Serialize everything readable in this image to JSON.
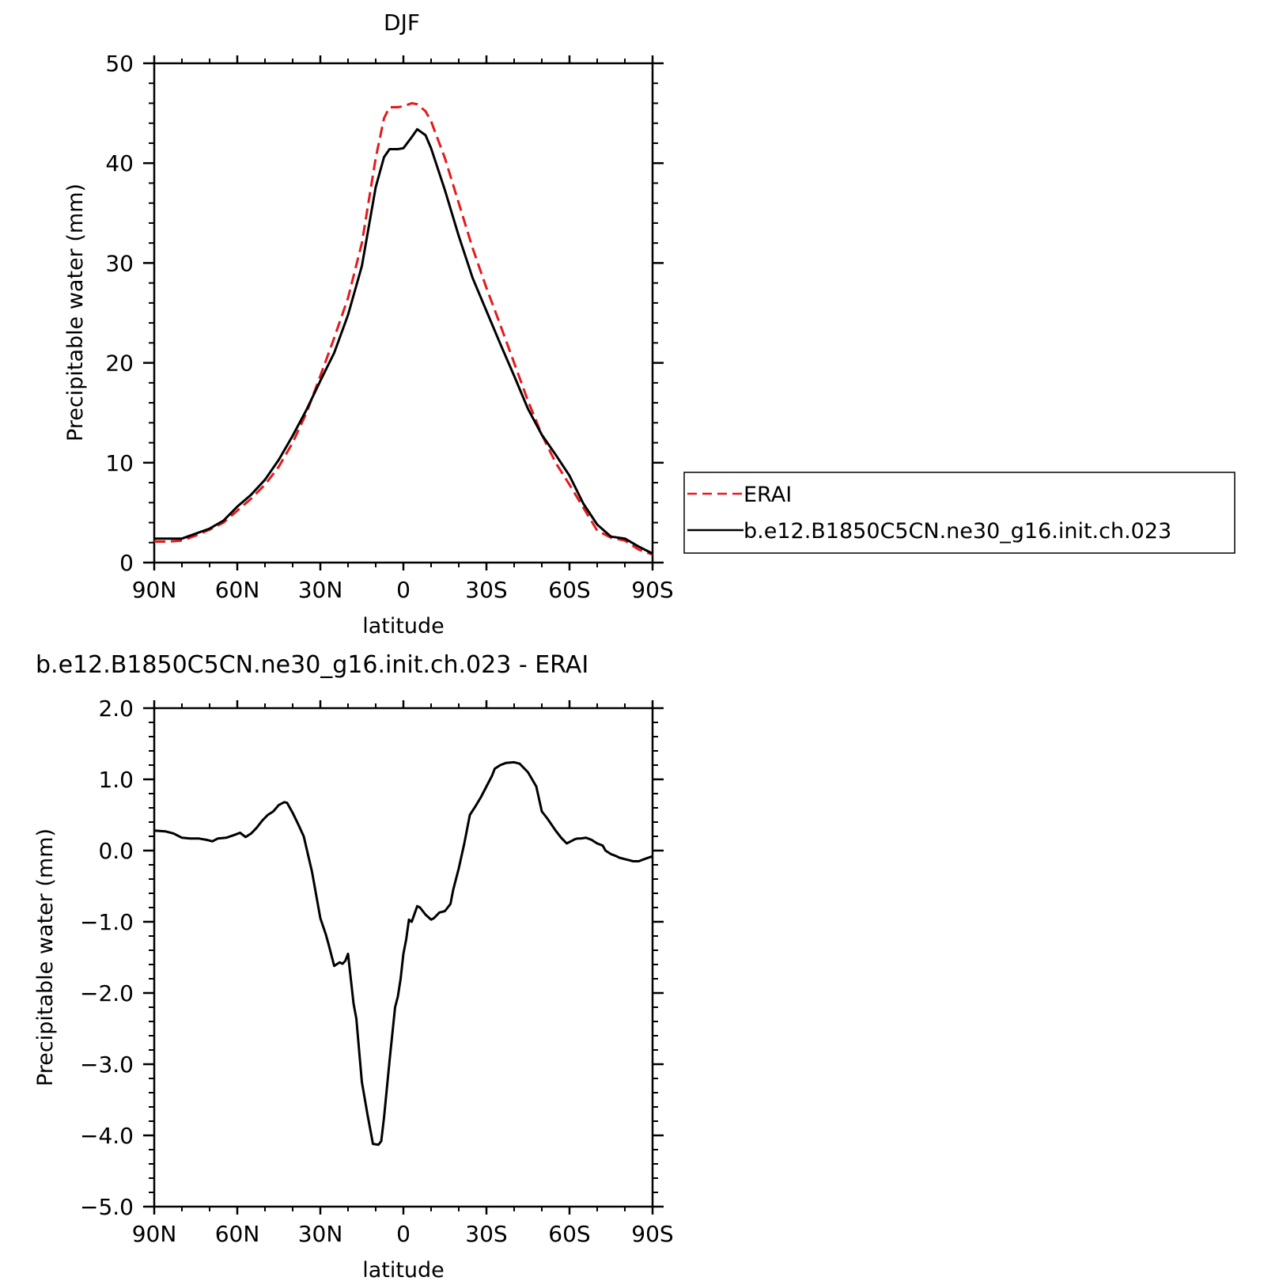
{
  "chart_data": [
    {
      "type": "line",
      "title": "DJF",
      "xlabel": "latitude",
      "ylabel": "Precipitable water (mm)",
      "xlim": [
        90,
        -90
      ],
      "ylim": [
        0,
        50
      ],
      "x_ticks": [
        90,
        60,
        30,
        0,
        -30,
        -60,
        -90
      ],
      "x_tick_labels": [
        "90N",
        "60N",
        "30N",
        "0",
        "30S",
        "60S",
        "90S"
      ],
      "y_ticks": [
        0,
        10,
        20,
        30,
        40,
        50
      ],
      "y_tick_labels": [
        "0",
        "10",
        "20",
        "30",
        "40",
        "50"
      ],
      "legend_position": "right",
      "series": [
        {
          "name": "ERAI",
          "color": "#e41a1c",
          "style": "dashed",
          "x": [
            90,
            85,
            80,
            75,
            70,
            65,
            60,
            55,
            50,
            45,
            40,
            35,
            30,
            25,
            20,
            15,
            10,
            7,
            5,
            3,
            2,
            0,
            -3,
            -5,
            -8,
            -10,
            -15,
            -20,
            -25,
            -30,
            -35,
            -40,
            -45,
            -50,
            -55,
            -60,
            -65,
            -70,
            -75,
            -80,
            -85,
            -90
          ],
          "y": [
            2.1,
            2.1,
            2.2,
            2.7,
            3.3,
            4.0,
            5.2,
            6.4,
            7.8,
            9.6,
            12.0,
            15.0,
            18.7,
            22.5,
            26.5,
            32.0,
            40.5,
            44.5,
            45.6,
            45.6,
            45.6,
            45.7,
            46.0,
            45.9,
            45.2,
            44.2,
            40.5,
            36.0,
            31.5,
            27.5,
            23.8,
            20.0,
            16.2,
            12.8,
            10.0,
            7.8,
            5.5,
            3.2,
            2.5,
            2.2,
            1.3,
            0.8
          ]
        },
        {
          "name": "b.e12.B1850C5CN.ne30_g16.init.ch.023",
          "color": "#000000",
          "style": "solid",
          "x": [
            90,
            85,
            80,
            75,
            70,
            65,
            60,
            55,
            50,
            45,
            40,
            35,
            30,
            25,
            20,
            15,
            10,
            7,
            5,
            3,
            2,
            0,
            -3,
            -5,
            -8,
            -10,
            -15,
            -20,
            -25,
            -30,
            -35,
            -40,
            -45,
            -50,
            -55,
            -60,
            -65,
            -70,
            -75,
            -80,
            -85,
            -90
          ],
          "y": [
            2.4,
            2.4,
            2.4,
            2.9,
            3.4,
            4.2,
            5.6,
            6.8,
            8.3,
            10.3,
            12.7,
            15.3,
            18.2,
            21.0,
            24.8,
            29.7,
            37.6,
            40.6,
            41.4,
            41.4,
            41.4,
            41.5,
            42.6,
            43.4,
            42.8,
            41.5,
            37.3,
            32.7,
            28.5,
            25.2,
            21.9,
            18.7,
            15.4,
            12.8,
            10.8,
            8.7,
            5.9,
            3.8,
            2.6,
            2.4,
            1.6,
            0.9
          ]
        }
      ]
    },
    {
      "type": "line",
      "title": "b.e12.B1850C5CN.ne30_g16.init.ch.023 - ERAI",
      "xlabel": "latitude",
      "ylabel": "Precipitable water (mm)",
      "xlim": [
        90,
        -90
      ],
      "ylim": [
        -5,
        2
      ],
      "x_ticks": [
        90,
        60,
        30,
        0,
        -30,
        -60,
        -90
      ],
      "x_tick_labels": [
        "90N",
        "60N",
        "30N",
        "0",
        "30S",
        "60S",
        "90S"
      ],
      "y_ticks": [
        2,
        1,
        0,
        -1,
        -2,
        -3,
        -4,
        -5
      ],
      "y_tick_labels": [
        "2.0",
        "1.0",
        "0.0",
        "−1.0",
        "−2.0",
        "−3.0",
        "−4.0",
        "−5.0"
      ],
      "series": [
        {
          "color": "#000000",
          "style": "solid",
          "x": [
            90,
            86,
            83,
            80,
            77,
            74,
            71,
            69,
            67,
            64,
            61,
            59,
            57,
            55,
            53,
            51,
            49,
            47,
            45,
            44,
            43,
            42,
            40,
            38,
            36,
            33,
            30,
            28,
            27,
            25,
            23,
            22,
            21,
            20,
            18,
            17,
            15,
            13,
            11,
            9,
            8,
            7,
            5,
            3,
            2,
            1,
            0,
            -1,
            -2,
            -3,
            -5,
            -6,
            -8,
            -10,
            -11,
            -13,
            -15,
            -16,
            -17,
            -18,
            -20,
            -22,
            -23,
            -24,
            -26,
            -28,
            -30,
            -32,
            -33,
            -35,
            -37,
            -40,
            -42,
            -45,
            -48,
            -50,
            -52,
            -55,
            -57,
            -58,
            -59,
            -60,
            -62,
            -63,
            -64,
            -66,
            -68,
            -70,
            -72,
            -73,
            -75,
            -77,
            -78,
            -80,
            -81,
            -83,
            -84,
            -85,
            -87,
            -90
          ],
          "y": [
            0.28,
            0.27,
            0.24,
            0.18,
            0.17,
            0.17,
            0.15,
            0.13,
            0.17,
            0.18,
            0.22,
            0.25,
            0.19,
            0.24,
            0.32,
            0.42,
            0.5,
            0.55,
            0.64,
            0.66,
            0.68,
            0.67,
            0.53,
            0.37,
            0.2,
            -0.3,
            -0.95,
            -1.18,
            -1.32,
            -1.62,
            -1.57,
            -1.59,
            -1.55,
            -1.45,
            -2.15,
            -2.36,
            -3.25,
            -3.7,
            -4.12,
            -4.13,
            -4.08,
            -3.75,
            -2.95,
            -2.2,
            -2.05,
            -1.8,
            -1.45,
            -1.25,
            -0.97,
            -1.0,
            -0.78,
            -0.8,
            -0.9,
            -0.97,
            -0.95,
            -0.87,
            -0.85,
            -0.8,
            -0.75,
            -0.55,
            -0.25,
            0.1,
            0.3,
            0.5,
            0.62,
            0.75,
            0.9,
            1.05,
            1.15,
            1.2,
            1.23,
            1.24,
            1.22,
            1.1,
            0.9,
            0.55,
            0.45,
            0.28,
            0.18,
            0.14,
            0.1,
            0.12,
            0.16,
            0.17,
            0.17,
            0.18,
            0.15,
            0.1,
            0.07,
            0.0,
            -0.05,
            -0.08,
            -0.1,
            -0.12,
            -0.13,
            -0.15,
            -0.15,
            -0.15,
            -0.12,
            -0.08
          ]
        }
      ]
    }
  ]
}
